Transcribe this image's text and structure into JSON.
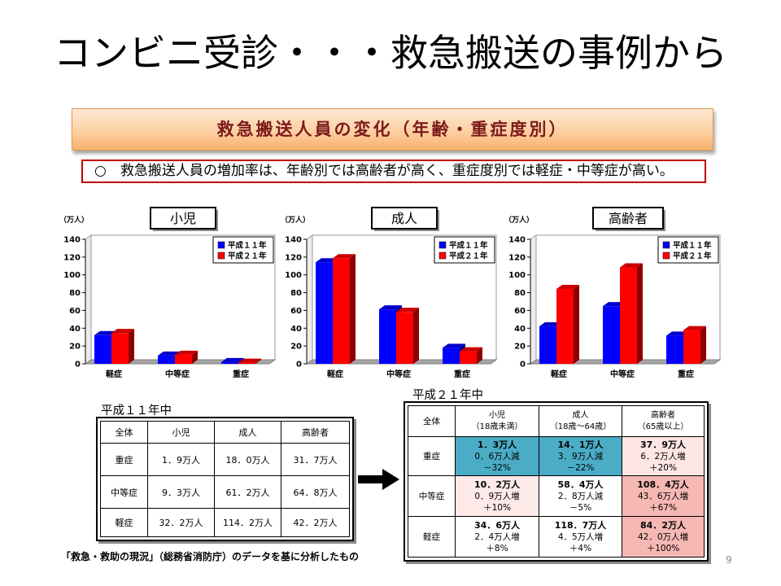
{
  "slide": {
    "title": "コンビニ受診・・・救急搬送の事例から",
    "banner": "救急搬送人員の変化（年齢・重症度別）",
    "summary": "○　救急搬送人員の増加率は、年齢別では高齢者が高く、重症度別では軽症・中等症が高い。",
    "source_note": "「救急・救助の現況」（総務省消防庁）のデータを基に分析したもの",
    "page_number": "9"
  },
  "chart_data": [
    {
      "type": "bar",
      "title": "小児",
      "ylabel": "（万人）",
      "ylim": [
        0,
        140
      ],
      "yticks": [
        0,
        20,
        40,
        60,
        80,
        100,
        120,
        140
      ],
      "grid": false,
      "legend": "top-right",
      "categories": [
        "軽症",
        "中等症",
        "重症"
      ],
      "series": [
        {
          "name": "平成１１年",
          "color": "#0000ff",
          "values": [
            32.2,
            9.3,
            1.9
          ]
        },
        {
          "name": "平成２１年",
          "color": "#ff0000",
          "values": [
            34.6,
            10.2,
            1.3
          ]
        }
      ]
    },
    {
      "type": "bar",
      "title": "成人",
      "ylabel": "（万人）",
      "ylim": [
        0,
        140
      ],
      "yticks": [
        0,
        20,
        40,
        60,
        80,
        100,
        120,
        140
      ],
      "grid": false,
      "legend": "top-right",
      "categories": [
        "軽症",
        "中等症",
        "重症"
      ],
      "series": [
        {
          "name": "平成１１年",
          "color": "#0000ff",
          "values": [
            114.2,
            61.2,
            18.0
          ]
        },
        {
          "name": "平成２１年",
          "color": "#ff0000",
          "values": [
            118.7,
            58.4,
            14.1
          ]
        }
      ]
    },
    {
      "type": "bar",
      "title": "高齢者",
      "ylabel": "（万人）",
      "ylim": [
        0,
        140
      ],
      "yticks": [
        0,
        20,
        40,
        60,
        80,
        100,
        120,
        140
      ],
      "grid": false,
      "legend": "top-right",
      "categories": [
        "軽症",
        "中等症",
        "重症"
      ],
      "series": [
        {
          "name": "平成１１年",
          "color": "#0000ff",
          "values": [
            42.2,
            64.8,
            31.7
          ]
        },
        {
          "name": "平成２１年",
          "color": "#ff0000",
          "values": [
            84.2,
            108.4,
            37.9
          ]
        }
      ]
    }
  ],
  "table_h11": {
    "title": "平成１１年中",
    "header": [
      "全体",
      "小児",
      "成人",
      "高齢者"
    ],
    "rows": [
      {
        "label": "重症",
        "cells": [
          "1．9万人",
          "18．0万人",
          "31．7万人"
        ]
      },
      {
        "label": "中等症",
        "cells": [
          "9．3万人",
          "61．2万人",
          "64．8万人"
        ]
      },
      {
        "label": "軽症",
        "cells": [
          "32．2万人",
          "114．2万人",
          "42．2万人"
        ]
      }
    ]
  },
  "table_h21": {
    "title": "平成２１年中",
    "corner": "全体",
    "columns": [
      {
        "label": "小児",
        "sub": "（18歳未満）"
      },
      {
        "label": "成人",
        "sub": "（18歳～64歳）"
      },
      {
        "label": "高齢者",
        "sub": "（65歳以上）"
      }
    ],
    "rows": [
      {
        "label": "重症",
        "cells": [
          {
            "value": "1．3万人",
            "change": "0．6万人減",
            "pct": "－32%",
            "bg": "#4bacc6"
          },
          {
            "value": "14．1万人",
            "change": "3．9万人減",
            "pct": "－22%",
            "bg": "#4bacc6"
          },
          {
            "value": "37．9万人",
            "change": "6．2万人増",
            "pct": "＋20%",
            "bg": "#fde6e4"
          }
        ]
      },
      {
        "label": "中等症",
        "cells": [
          {
            "value": "10．2万人",
            "change": "0．9万人増",
            "pct": "＋10%",
            "bg": "#fde9e7"
          },
          {
            "value": "58．4万人",
            "change": "2．8万人減",
            "pct": "－5%",
            "bg": "#ffffff"
          },
          {
            "value": "108．4万人",
            "change": "43．6万人増",
            "pct": "＋67%",
            "bg": "#f6b8b3"
          }
        ]
      },
      {
        "label": "軽症",
        "cells": [
          {
            "value": "34．6万人",
            "change": "2．4万人増",
            "pct": "＋8%",
            "bg": "#ffffff"
          },
          {
            "value": "118．7万人",
            "change": "4．5万人増",
            "pct": "＋4%",
            "bg": "#ffffff"
          },
          {
            "value": "84．2万人",
            "change": "42．0万人増",
            "pct": "＋100%",
            "bg": "#f6b8b3"
          }
        ]
      }
    ]
  }
}
